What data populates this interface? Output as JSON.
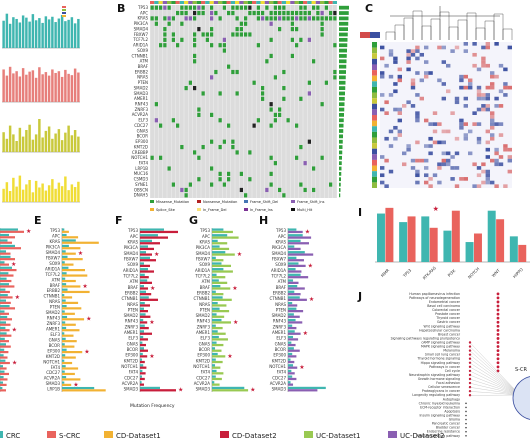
{
  "panel_letters": {
    "B": "B",
    "C": "C",
    "E": "E",
    "F": "F",
    "G": "G",
    "H": "H",
    "I": "I",
    "J": "J"
  },
  "colors": {
    "teal": "#3fb6b0",
    "salmon": "#e77f7b",
    "olive": "#c9c93b",
    "yellow": "#f0dd36",
    "orange": "#f2b233",
    "purple": "#8f63b8",
    "green": "#8fbc3f",
    "crc": "#e9635d",
    "cd2": "#c81e3b",
    "uc1": "#99c952",
    "uc2": "#8a5fb2",
    "grid_bg": "#dcdcdc",
    "grid_green": "#2f9f3a",
    "heat_blue": "#3b4fa0",
    "heat_red": "#d24b4b"
  },
  "panel_b": {
    "genes": [
      "TP53",
      "APC",
      "KRAS",
      "PIK3CA",
      "SMAD4",
      "FBXW7",
      "TCF7L2",
      "ARID1A",
      "SOX9",
      "CTNNB1",
      "ATM",
      "BRAF",
      "ERBB2",
      "NRAS",
      "PTEN",
      "SMAD2",
      "SMAD3",
      "AMER1",
      "RNF43",
      "ZNRF3",
      "ACVR2A",
      "ELF3",
      "CDC27",
      "GNAS",
      "BCOR",
      "EP300",
      "KMT2D",
      "CREBBP",
      "NOTCH1",
      "FAT4",
      "LRP1B",
      "MUC16",
      "CSMD3",
      "SYNE1",
      "OBSCN",
      "DNAH5"
    ],
    "legend": [
      "Missense_Mutation",
      "Nonsense_Mutation",
      "Frame_Shift_Del",
      "Frame_Shift_Ins",
      "Splice_Site",
      "In_Frame_Del",
      "In_Frame_Ins",
      "Multi_Hit"
    ]
  },
  "panel_f": {
    "xlabel": "Mutation Frequency"
  },
  "legend_bottom": [
    {
      "label": "CRC",
      "color": "#3fb6b0"
    },
    {
      "label": "S-CRC",
      "color": "#e9635d"
    },
    {
      "label": "CD-Dataset1",
      "color": "#f2b233"
    },
    {
      "label": "CD-Dataset2",
      "color": "#c81e3b"
    },
    {
      "label": "UC-Dataset1",
      "color": "#99c952"
    },
    {
      "label": "UC-Dataset2",
      "color": "#8a5fb2"
    }
  ],
  "panel_i": {
    "categories": [
      "MMR",
      "TP53",
      "RTK-RAS",
      "PI3K",
      "NOTCH",
      "WNT",
      "HIPPO"
    ]
  },
  "panel_j": {
    "pathways": [
      "Human papillomavirus infection",
      "Pathways of neurodegeneration",
      "Endometrial cancer",
      "Basal cell carcinoma",
      "Colorectal cancer",
      "Prostate cancer",
      "Thyroid cancer",
      "Gastric cancer",
      "Wnt signaling pathway",
      "Hepatocellular carcinoma",
      "Breast cancer",
      "Signaling pathways regulating pluripotency",
      "cAMP signaling pathway",
      "MAPK signaling pathway",
      "Melanoma",
      "Small cell lung cancer",
      "Thyroid hormone signaling",
      "Hippo signaling pathway",
      "Pathways in cancer",
      "Cell cycle",
      "Neurotrophin signaling pathway",
      "Growth hormone signaling",
      "Focal adhesion",
      "Cellular senescence",
      "Proteoglycans in cancer",
      "Longevity regulating pathway",
      "Autophagy",
      "Chronic myeloid leukemia",
      "ECM-receptor interaction",
      "Apoptosis",
      "Insulin signaling pathway",
      "Glioma",
      "Pancreatic cancer",
      "Bladder cancer",
      "Endocrine resistance",
      "Prolactin signaling pathway"
    ],
    "circle_label": "S-CR"
  },
  "chart_data": [
    {
      "type": "bar",
      "panel": "A-1",
      "color": "#3fb6b0",
      "values": [
        0.62,
        0.78,
        0.55,
        0.7,
        0.66,
        0.58,
        0.74,
        0.69,
        0.6,
        0.77,
        0.63,
        0.68,
        0.57,
        0.72,
        0.65,
        0.71,
        0.59,
        0.67,
        0.75,
        0.61,
        0.64,
        0.7,
        0.56,
        0.66
      ]
    },
    {
      "type": "bar",
      "panel": "A-2",
      "color": "#e77f7b",
      "values": [
        0.74,
        0.6,
        0.8,
        0.65,
        0.7,
        0.58,
        0.77,
        0.62,
        0.69,
        0.72,
        0.55,
        0.79,
        0.63,
        0.68,
        0.6,
        0.74,
        0.66,
        0.7,
        0.57,
        0.73,
        0.64,
        0.61,
        0.76,
        0.67
      ]
    },
    {
      "type": "bar",
      "panel": "A-3",
      "color": "#c9c93b",
      "values": [
        0.45,
        0.3,
        0.6,
        0.4,
        0.25,
        0.55,
        0.35,
        0.5,
        0.62,
        0.28,
        0.4,
        0.75,
        0.33,
        0.48,
        0.58,
        0.3,
        0.42,
        0.52,
        0.27,
        0.44,
        0.6,
        0.38,
        0.5,
        0.35
      ]
    },
    {
      "type": "bar",
      "panel": "A-4",
      "color": "#f0dd36",
      "values": [
        0.3,
        0.45,
        0.25,
        0.55,
        0.35,
        0.6,
        0.28,
        0.4,
        0.5,
        0.22,
        0.48,
        0.33,
        0.42,
        0.26,
        0.38,
        0.52,
        0.3,
        0.44,
        0.36,
        0.58,
        0.27,
        0.4,
        0.34,
        0.46
      ]
    },
    {
      "type": "bar",
      "panel": "D",
      "orientation": "horizontal",
      "series": [
        {
          "color": "#3fb6b0",
          "values": [
            0.6,
            0.3,
            0.25,
            0.5,
            0.2,
            0.35,
            0.15,
            0.4,
            0.28,
            0.22,
            0.3,
            0.18,
            0.26,
            0.2,
            0.32,
            0.15,
            0.24,
            0.2,
            0.18,
            0.22,
            0.16,
            0.2,
            0.14,
            0.12,
            0.18,
            0.1,
            0.15,
            0.12,
            0.1,
            0.08
          ]
        },
        {
          "color": "#e9635d",
          "values": [
            0.8,
            0.5,
            0.4,
            0.7,
            0.35,
            0.5,
            0.3,
            0.55,
            0.45,
            0.38,
            0.48,
            0.33,
            0.42,
            0.36,
            0.5,
            0.3,
            0.4,
            0.35,
            0.32,
            0.38,
            0.3,
            0.36,
            0.28,
            0.25,
            0.33,
            0.22,
            0.3,
            0.25,
            0.22,
            0.2
          ]
        }
      ]
    },
    {
      "type": "bar",
      "panel": "E",
      "orientation": "horizontal",
      "series": [
        {
          "color": "#3fb6b0",
          "values": [
            0.05,
            0.1,
            0.3,
            0.15,
            0.08,
            0.12,
            0.06,
            0.14,
            0.1,
            0.07,
            0.09,
            0.12,
            0.05,
            0.08,
            0.1,
            0.06,
            0.11,
            0.07,
            0.09,
            0.05,
            0.08,
            0.06,
            0.1,
            0.07,
            0.05,
            0.08,
            0.06,
            0.09,
            0.05,
            0.7
          ]
        },
        {
          "color": "#f2b233",
          "values": [
            0.15,
            0.35,
            0.8,
            0.4,
            0.3,
            0.45,
            0.25,
            0.5,
            0.55,
            0.3,
            0.4,
            0.6,
            0.22,
            0.35,
            0.42,
            0.28,
            0.48,
            0.3,
            0.38,
            0.25,
            0.32,
            0.27,
            0.44,
            0.3,
            0.22,
            0.35,
            0.28,
            0.4,
            0.2,
            0.95
          ]
        }
      ]
    },
    {
      "type": "bar",
      "panel": "F",
      "orientation": "horizontal",
      "series": [
        {
          "color": "#3fb6b0",
          "values": [
            0.6,
            0.45,
            0.3,
            0.2,
            0.15,
            0.25,
            0.1,
            0.2,
            0.12,
            0.18,
            0.1,
            0.15,
            0.22,
            0.12,
            0.1,
            0.14,
            0.08,
            0.12,
            0.1,
            0.08,
            0.06,
            0.1,
            0.07,
            0.05,
            0.08,
            0.06,
            0.05,
            0.04,
            0.5
          ]
        },
        {
          "color": "#c81e3b",
          "values": [
            0.95,
            0.7,
            0.5,
            0.35,
            0.3,
            0.4,
            0.25,
            0.35,
            0.22,
            0.3,
            0.2,
            0.28,
            0.45,
            0.25,
            0.2,
            0.26,
            0.18,
            0.22,
            0.3,
            0.2,
            0.15,
            0.2,
            0.18,
            0.12,
            0.16,
            0.14,
            0.12,
            0.1,
            0.9
          ]
        }
      ]
    },
    {
      "type": "bar",
      "panel": "G",
      "orientation": "horizontal",
      "series": [
        {
          "color": "#3fb6b0",
          "values": [
            0.3,
            0.4,
            0.15,
            0.2,
            0.35,
            0.1,
            0.25,
            0.3,
            0.12,
            0.18,
            0.22,
            0.1,
            0.28,
            0.15,
            0.2,
            0.12,
            0.25,
            0.1,
            0.15,
            0.18,
            0.12,
            0.08,
            0.15,
            0.1,
            0.08,
            0.12,
            0.1,
            0.06,
            0.85
          ]
        },
        {
          "color": "#99c952",
          "values": [
            0.55,
            0.7,
            0.4,
            0.45,
            0.6,
            0.3,
            0.5,
            0.55,
            0.35,
            0.4,
            0.48,
            0.3,
            0.52,
            0.38,
            0.45,
            0.32,
            0.5,
            0.28,
            0.36,
            0.42,
            0.3,
            0.25,
            0.35,
            0.28,
            0.22,
            0.3,
            0.26,
            0.2,
            0.95
          ]
        }
      ]
    },
    {
      "type": "bar",
      "panel": "H",
      "orientation": "horizontal",
      "series": [
        {
          "color": "#3fb6b0",
          "values": [
            0.2,
            0.35,
            0.3,
            0.15,
            0.4,
            0.2,
            0.25,
            0.18,
            0.3,
            0.12,
            0.22,
            0.15,
            0.28,
            0.1,
            0.2,
            0.14,
            0.18,
            0.1,
            0.16,
            0.12,
            0.08,
            0.14,
            0.1,
            0.06,
            0.12,
            0.08,
            0.1,
            0.06,
            0.9
          ]
        },
        {
          "color": "#8a5fb2",
          "values": [
            0.35,
            0.55,
            0.5,
            0.3,
            0.6,
            0.38,
            0.42,
            0.32,
            0.48,
            0.25,
            0.4,
            0.3,
            0.45,
            0.22,
            0.36,
            0.28,
            0.34,
            0.2,
            0.3,
            0.24,
            0.18,
            0.28,
            0.2,
            0.15,
            0.22,
            0.16,
            0.2,
            0.12,
            0.7
          ]
        }
      ]
    },
    {
      "type": "bar",
      "panel": "I",
      "categories": [
        "MMR",
        "TP53",
        "RTK-RAS",
        "PI3K",
        "NOTCH",
        "WNT",
        "HIPPO"
      ],
      "series": [
        {
          "color": "#3fb6b0",
          "values": [
            0.85,
            0.7,
            0.8,
            0.55,
            0.35,
            0.9,
            0.45
          ]
        },
        {
          "color": "#e9635d",
          "values": [
            0.95,
            0.8,
            0.6,
            0.9,
            0.5,
            0.75,
            0.3
          ]
        }
      ]
    }
  ]
}
